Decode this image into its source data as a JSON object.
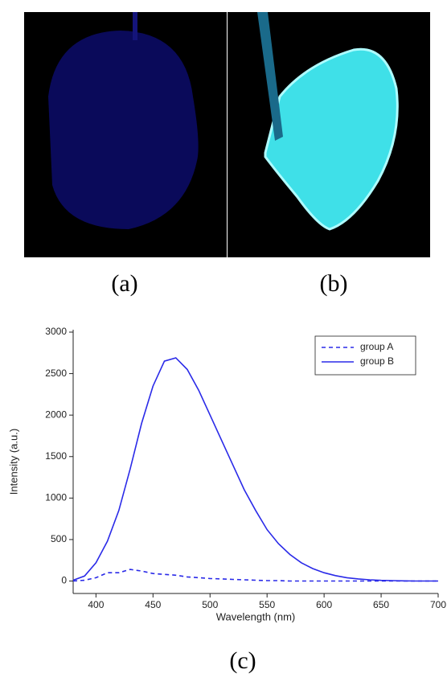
{
  "panels": [
    "(a)",
    "(b)",
    "(c)"
  ],
  "chart_data": {
    "type": "line",
    "xlabel": "Wavelength (nm)",
    "ylabel": "Intensity (a.u.)",
    "x": [
      380,
      390,
      400,
      410,
      420,
      430,
      440,
      450,
      460,
      470,
      480,
      490,
      500,
      510,
      520,
      530,
      540,
      550,
      560,
      570,
      580,
      590,
      600,
      610,
      620,
      630,
      640,
      650,
      660,
      670,
      680,
      690,
      700
    ],
    "series": [
      {
        "name": "group A",
        "color": "#2a2ae8",
        "linestyle": "dashed",
        "values": [
          0,
          10,
          40,
          100,
          100,
          140,
          120,
          90,
          80,
          70,
          50,
          40,
          30,
          25,
          20,
          15,
          10,
          5,
          5,
          0,
          0,
          0,
          0,
          0,
          0,
          0,
          0,
          0,
          0,
          0,
          0,
          0,
          0
        ]
      },
      {
        "name": "group B",
        "color": "#2a2ae8",
        "linestyle": "solid",
        "values": [
          10,
          60,
          220,
          480,
          850,
          1350,
          1900,
          2350,
          2650,
          2690,
          2550,
          2300,
          2000,
          1700,
          1400,
          1100,
          850,
          620,
          450,
          320,
          220,
          150,
          100,
          65,
          40,
          25,
          15,
          8,
          5,
          2,
          0,
          0,
          0
        ]
      }
    ],
    "xlim": [
      380,
      700
    ],
    "xticks": [
      400,
      450,
      500,
      550,
      600,
      650,
      700
    ],
    "ylim": [
      -150,
      3000
    ],
    "yticks": [
      0,
      500,
      1000,
      1500,
      2000,
      2500,
      3000
    ],
    "legend": "upper right"
  }
}
